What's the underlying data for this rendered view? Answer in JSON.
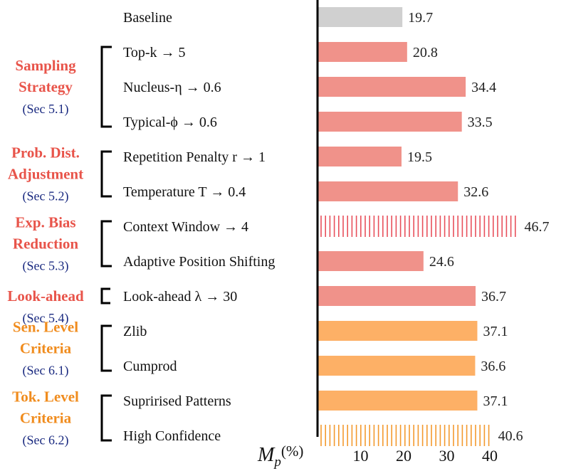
{
  "chart_data": {
    "type": "bar",
    "orientation": "horizontal",
    "xlabel_symbol": "M",
    "xlabel_subscript": "p",
    "xlabel_unit": "(%)",
    "xticks": [
      10,
      20,
      30,
      40
    ],
    "xlim": [
      0,
      50
    ],
    "grid": false,
    "bars": [
      {
        "label": "Baseline",
        "value": 19.7,
        "value_label": "19.7",
        "color": "#d0d0d0",
        "pattern": "solid"
      },
      {
        "label": "Top-k → 5",
        "value": 20.8,
        "value_label": "20.8",
        "color": "#f0928a",
        "pattern": "solid"
      },
      {
        "label": "Nucleus-η → 0.6",
        "value": 34.4,
        "value_label": "34.4",
        "color": "#f0928a",
        "pattern": "solid"
      },
      {
        "label": "Typical-ϕ → 0.6",
        "value": 33.5,
        "value_label": "33.5",
        "color": "#f0928a",
        "pattern": "solid"
      },
      {
        "label": "Repetition Penalty r → 1",
        "value": 19.5,
        "value_label": "19.5",
        "color": "#f0928a",
        "pattern": "solid"
      },
      {
        "label": "Temperature T → 0.4",
        "value": 32.6,
        "value_label": "32.6",
        "color": "#f0928a",
        "pattern": "solid"
      },
      {
        "label": "Context Window → 4",
        "value": 46.7,
        "value_label": "46.7",
        "color": "#e8505b",
        "pattern": "hatched"
      },
      {
        "label": "Adaptive Position Shifting",
        "value": 24.6,
        "value_label": "24.6",
        "color": "#f0928a",
        "pattern": "solid"
      },
      {
        "label": "Look-ahead λ → 30",
        "value": 36.7,
        "value_label": "36.7",
        "color": "#f0928a",
        "pattern": "solid"
      },
      {
        "label": "Zlib",
        "value": 37.1,
        "value_label": "37.1",
        "color": "#fdb066",
        "pattern": "solid"
      },
      {
        "label": "Cumprod",
        "value": 36.6,
        "value_label": "36.6",
        "color": "#fdb066",
        "pattern": "solid"
      },
      {
        "label": "Suprirised Patterns",
        "value": 37.1,
        "value_label": "37.1",
        "color": "#fdb066",
        "pattern": "solid"
      },
      {
        "label": "High Confidence",
        "value": 40.6,
        "value_label": "40.6",
        "color": "#f39a2e",
        "pattern": "hatched"
      }
    ],
    "groups": [
      {
        "lines": [
          "Sampling",
          "Strategy"
        ],
        "sec": "(Sec 5.1)",
        "color": "#e8544a",
        "first": 1,
        "last": 3
      },
      {
        "lines": [
          "Prob. Dist.",
          "Adjustment"
        ],
        "sec": "(Sec 5.2)",
        "color": "#e8544a",
        "first": 4,
        "last": 5
      },
      {
        "lines": [
          "Exp. Bias",
          "Reduction"
        ],
        "sec": "(Sec 5.3)",
        "color": "#e8544a",
        "first": 6,
        "last": 7
      },
      {
        "lines": [
          "Look-ahead"
        ],
        "sec": "(Sec 5.4)",
        "color": "#e8544a",
        "first": 8,
        "last": 8
      },
      {
        "lines": [
          "Sen. Level",
          "Criteria"
        ],
        "sec": "(Sec 6.1)",
        "color": "#f08c1e",
        "first": 9,
        "last": 10
      },
      {
        "lines": [
          "Tok. Level",
          "Criteria"
        ],
        "sec": "(Sec 6.2)",
        "color": "#f08c1e",
        "first": 11,
        "last": 12
      }
    ],
    "sec_color": "#1a2a80"
  }
}
